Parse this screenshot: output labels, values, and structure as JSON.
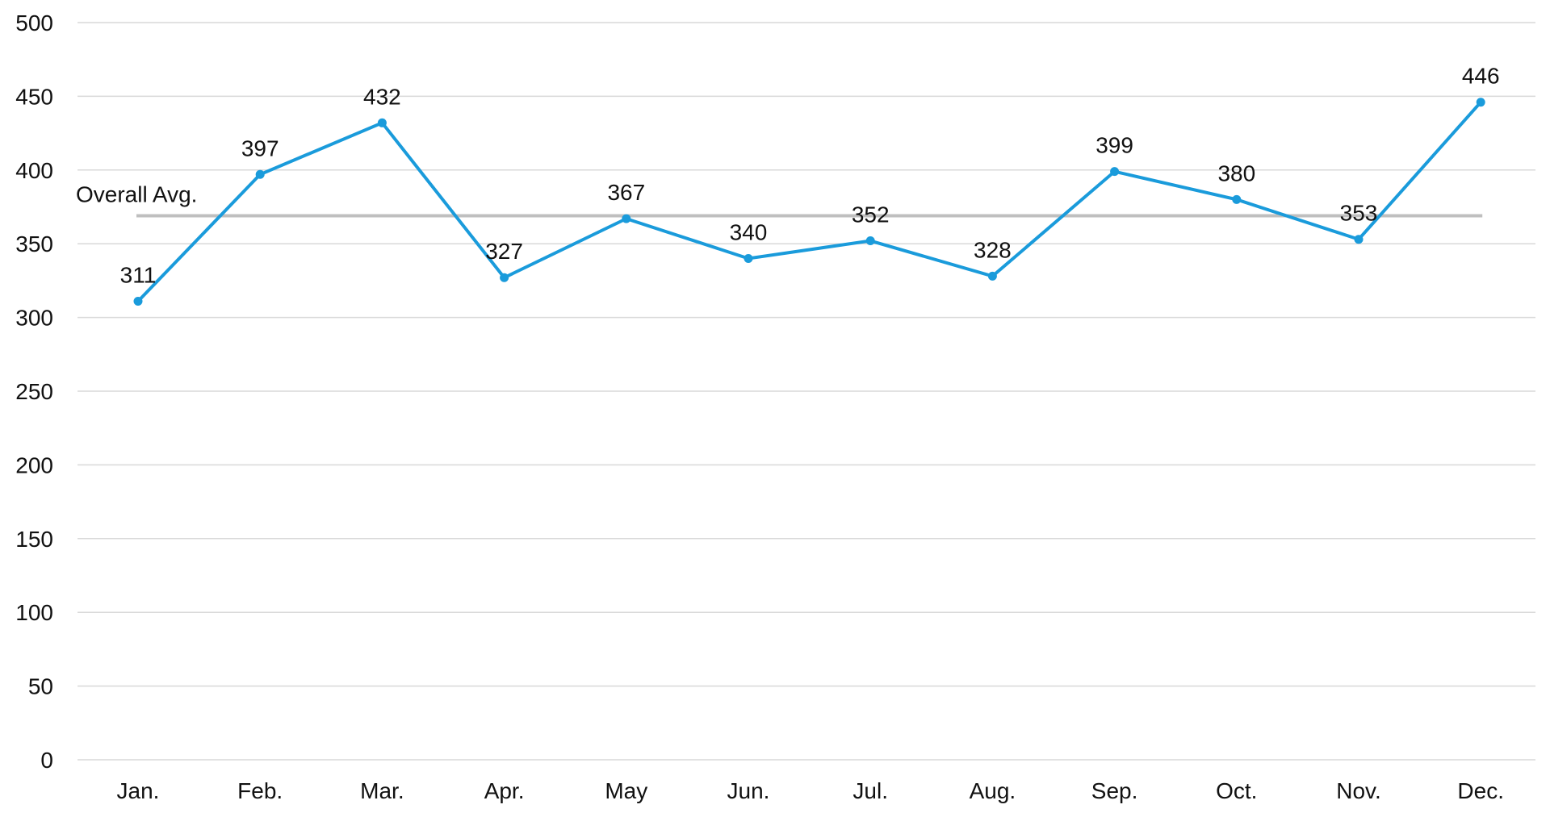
{
  "chart_data": {
    "type": "line",
    "title": "",
    "xlabel": "",
    "ylabel": "",
    "categories": [
      "Jan.",
      "Feb.",
      "Mar.",
      "Apr.",
      "May",
      "Jun.",
      "Jul.",
      "Aug.",
      "Sep.",
      "Oct.",
      "Nov.",
      "Dec."
    ],
    "series": [
      {
        "values": [
          311,
          397,
          432,
          327,
          367,
          340,
          352,
          328,
          399,
          380,
          353,
          446
        ],
        "color": "#1a9bdb"
      }
    ],
    "reference_line": {
      "label": "Overall Avg.",
      "value": 369,
      "color": "#bfbfbf"
    },
    "ylim": [
      0,
      500
    ],
    "yticks": [
      0,
      50,
      100,
      150,
      200,
      250,
      300,
      350,
      400,
      450,
      500
    ],
    "grid": true,
    "legend": "none",
    "gridline_color": "#d9d9d9"
  }
}
